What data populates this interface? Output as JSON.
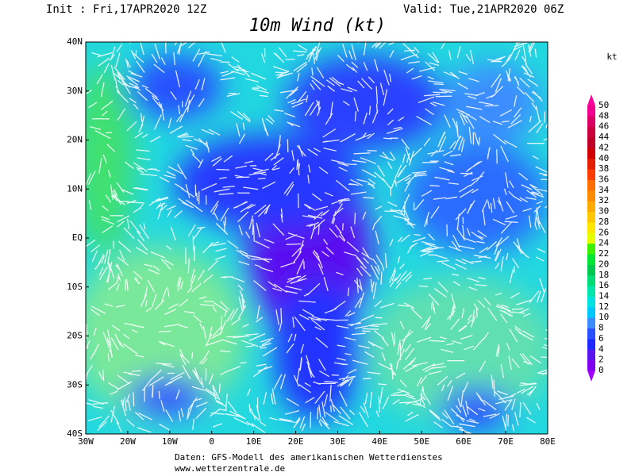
{
  "header": {
    "init": "Init : Fri,17APR2020 12Z",
    "valid": "Valid: Tue,21APR2020 06Z",
    "title": "10m Wind (kt)"
  },
  "map": {
    "lon_ticks": [
      {
        "value": -30,
        "label": "30W"
      },
      {
        "value": -20,
        "label": "20W"
      },
      {
        "value": -10,
        "label": "10W"
      },
      0,
      {
        "value": 10,
        "label": "10E"
      },
      {
        "value": 20,
        "label": "20E"
      },
      {
        "value": 30,
        "label": "30E"
      },
      {
        "value": 40,
        "label": "40E"
      },
      {
        "value": 50,
        "label": "50E"
      },
      {
        "value": 60,
        "label": "60E"
      },
      {
        "value": 70,
        "label": "70E"
      },
      {
        "value": 80,
        "label": "80E"
      }
    ],
    "lat_ticks": [
      {
        "value": 40,
        "label": "40N"
      },
      {
        "value": 30,
        "label": "30N"
      },
      {
        "value": 20,
        "label": "20N"
      },
      {
        "value": 10,
        "label": "10N"
      },
      {
        "value": 0,
        "label": "EQ"
      },
      {
        "value": -10,
        "label": "10S"
      },
      {
        "value": -20,
        "label": "20S"
      },
      {
        "value": -30,
        "label": "30S"
      },
      {
        "value": -40,
        "label": "40S"
      }
    ]
  },
  "colorbar": {
    "unit": "kt",
    "labels": [
      0,
      2,
      4,
      6,
      8,
      10,
      12,
      14,
      16,
      18,
      20,
      22,
      24,
      26,
      28,
      30,
      32,
      34,
      36,
      38,
      40,
      42,
      44,
      46,
      48,
      50
    ],
    "colors": [
      "#8200f0",
      "#5a14f0",
      "#1e28ff",
      "#2850ff",
      "#3c8cff",
      "#00c8ff",
      "#00e1e1",
      "#00e6aa",
      "#00dc78",
      "#00c850",
      "#00e632",
      "#3cf000",
      "#e6ff00",
      "#ffe600",
      "#ffc800",
      "#ffaa00",
      "#ff8c00",
      "#ff6e00",
      "#ff3c00",
      "#e61e00",
      "#d20000",
      "#be0028",
      "#c8003c",
      "#dc0064",
      "#f0008c"
    ],
    "low_color": "#a000ff",
    "high_color": "#ff00a0"
  },
  "footer": {
    "source": "Daten: GFS-Modell des amerikanischen Wetterdienstes",
    "site": "www.wetterzentrale.de"
  }
}
